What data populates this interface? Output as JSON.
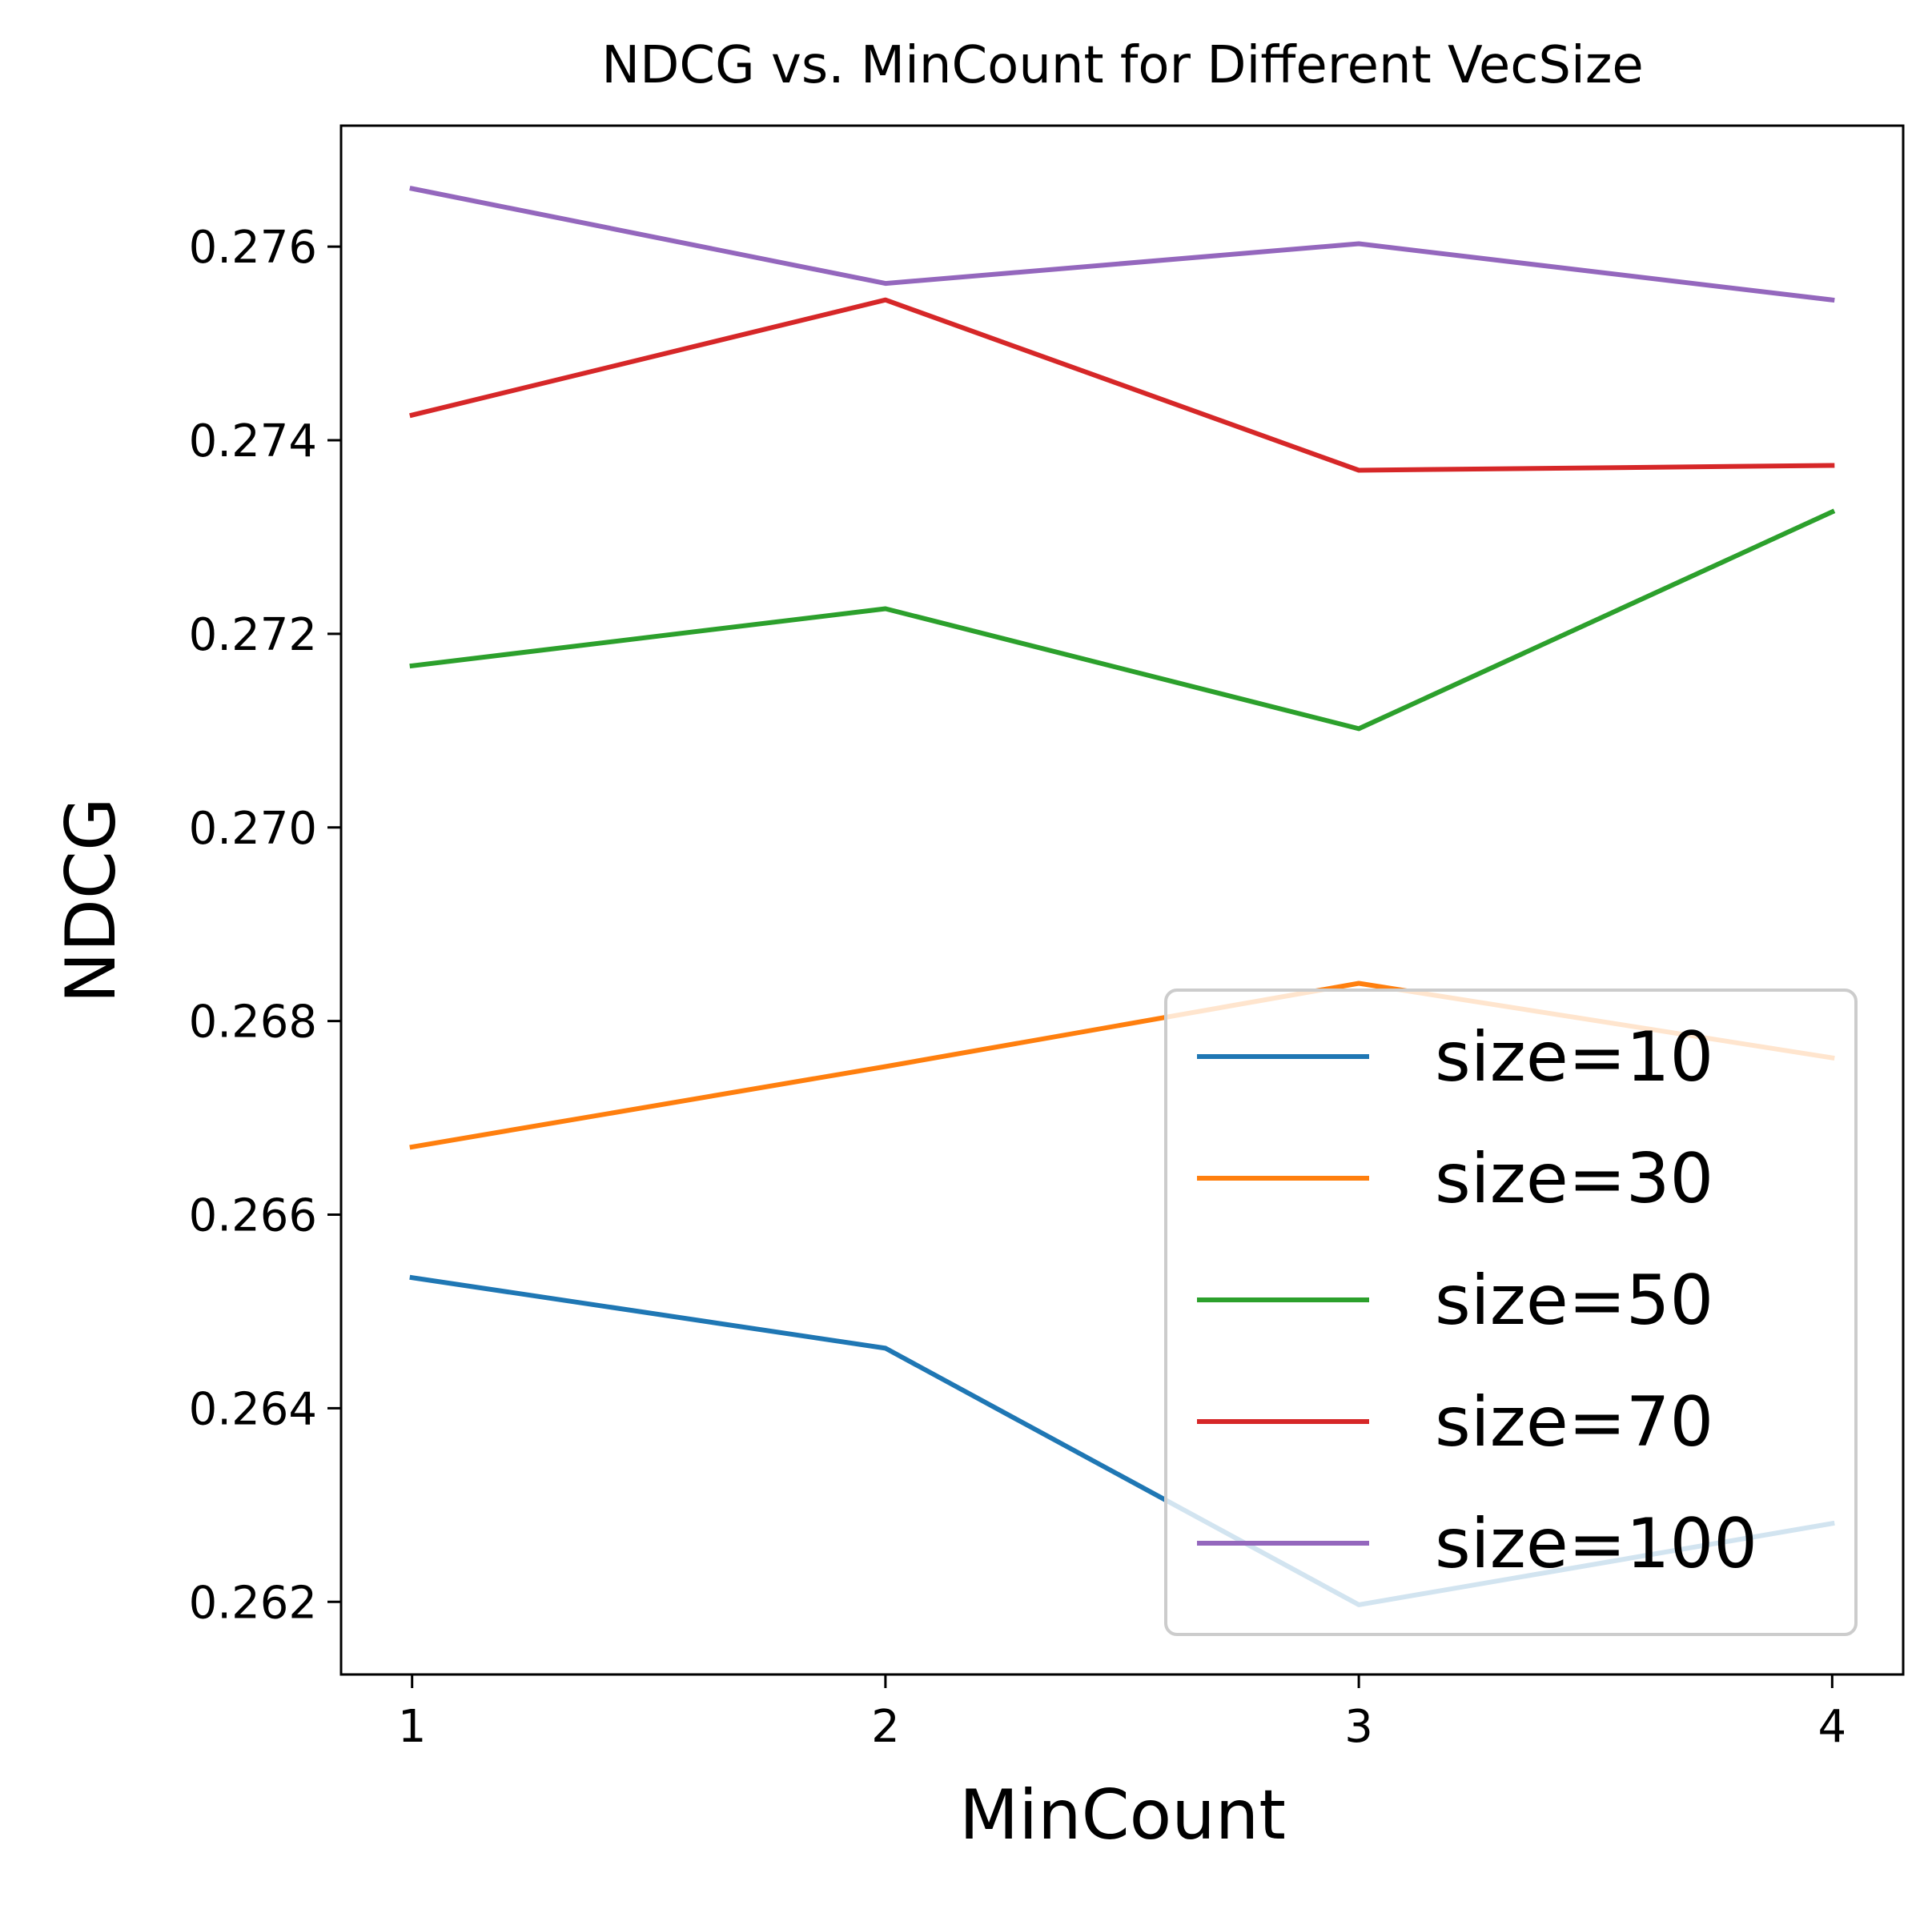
{
  "chart_data": {
    "type": "line",
    "title": "NDCG vs. MinCount for Different VecSize",
    "xlabel": "MinCount",
    "ylabel": "NDCG",
    "x": [
      1,
      2,
      3,
      4
    ],
    "x_ticks": [
      "1",
      "2",
      "3",
      "4"
    ],
    "xlim": [
      0.85,
      4.15
    ],
    "y_ticks": [
      "0.262",
      "0.264",
      "0.266",
      "0.268",
      "0.270",
      "0.272",
      "0.274",
      "0.276"
    ],
    "ylim": [
      0.26125,
      0.27725
    ],
    "grid": false,
    "legend_position": "lower-right",
    "series": [
      {
        "name": "size=10",
        "color": "#1f77b4",
        "values": [
          0.26535,
          0.26462,
          0.26197,
          0.26281
        ]
      },
      {
        "name": "size=30",
        "color": "#ff7f0e",
        "values": [
          0.2667,
          0.26753,
          0.26839,
          0.26762
        ]
      },
      {
        "name": "size=50",
        "color": "#2ca02c",
        "values": [
          0.27167,
          0.27226,
          0.27102,
          0.27326
        ]
      },
      {
        "name": "size=70",
        "color": "#d62728",
        "values": [
          0.27426,
          0.27545,
          0.27369,
          0.27374
        ]
      },
      {
        "name": "size=100",
        "color": "#9467bd",
        "values": [
          0.2766,
          0.27562,
          0.27603,
          0.27545
        ]
      }
    ]
  }
}
